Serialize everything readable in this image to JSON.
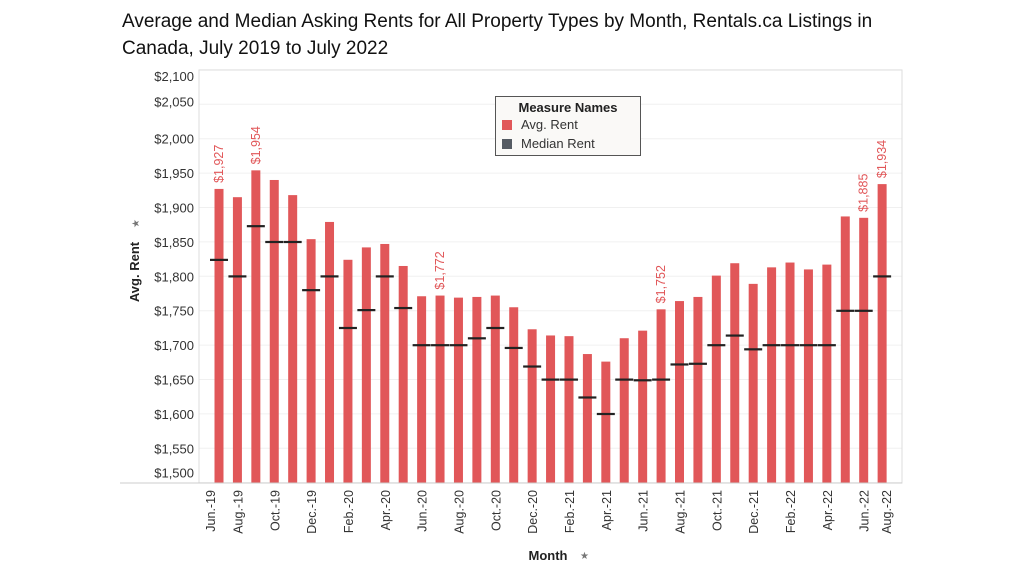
{
  "title": "Average and Median Asking Rents for All Property Types by Month, Rentals.ca Listings in Canada, July 2019 to July 2022",
  "chart_data": {
    "type": "bar",
    "title": "Average and Median Asking Rents for All Property Types by Month, Rentals.ca Listings in Canada, July 2019 to July 2022",
    "xlabel": "Month",
    "ylabel": "Avg. Rent",
    "ylim": [
      1500,
      2100
    ],
    "yticks": [
      1500,
      1550,
      1600,
      1650,
      1700,
      1750,
      1800,
      1850,
      1900,
      1950,
      2000,
      2050,
      2100
    ],
    "ytick_labels": [
      "$1,500",
      "$1,550",
      "$1,600",
      "$1,650",
      "$1,700",
      "$1,750",
      "$1,800",
      "$1,850",
      "$1,900",
      "$1,950",
      "$2,000",
      "$2,050",
      "$2,100"
    ],
    "grid": true,
    "legend_title": "Measure Names",
    "legend_position": "top-center",
    "x_tick_labels": [
      "Jun.-19",
      "Aug.-19",
      "Oct.-19",
      "Dec.-19",
      "Feb.-20",
      "Apr.-20",
      "Jun.-20",
      "Aug.-20",
      "Oct.-20",
      "Dec.-20",
      "Feb.-21",
      "Apr.-21",
      "Jun.-21",
      "Aug.-21",
      "Oct.-21",
      "Dec.-21",
      "Feb.-22",
      "Apr.-22",
      "Jun.-22",
      "Aug.-22"
    ],
    "categories": [
      "2019-07",
      "2019-08",
      "2019-09",
      "2019-10",
      "2019-11",
      "2019-12",
      "2020-01",
      "2020-02",
      "2020-03",
      "2020-04",
      "2020-05",
      "2020-06",
      "2020-07",
      "2020-08",
      "2020-09",
      "2020-10",
      "2020-11",
      "2020-12",
      "2021-01",
      "2021-02",
      "2021-03",
      "2021-04",
      "2021-05",
      "2021-06",
      "2021-07",
      "2021-08",
      "2021-09",
      "2021-10",
      "2021-11",
      "2021-12",
      "2022-01",
      "2022-02",
      "2022-03",
      "2022-04",
      "2022-05",
      "2022-06",
      "2022-07"
    ],
    "series": [
      {
        "name": "Avg. Rent",
        "color": "#e15759",
        "mark": "bar",
        "values": [
          1927,
          1915,
          1954,
          1940,
          1918,
          1854,
          1879,
          1824,
          1842,
          1847,
          1815,
          1771,
          1772,
          1769,
          1770,
          1772,
          1755,
          1723,
          1714,
          1713,
          1687,
          1676,
          1710,
          1721,
          1752,
          1764,
          1770,
          1801,
          1819,
          1789,
          1813,
          1820,
          1810,
          1817,
          1887,
          1885,
          1934
        ]
      },
      {
        "name": "Median Rent",
        "color": "#555b63",
        "mark": "tick",
        "values": [
          1824,
          1800,
          1873,
          1850,
          1850,
          1780,
          1800,
          1725,
          1751,
          1800,
          1754,
          1700,
          1700,
          1700,
          1710,
          1725,
          1696,
          1669,
          1650,
          1650,
          1624,
          1600,
          1650,
          1649,
          1650,
          1672,
          1673,
          1700,
          1714,
          1694,
          1700,
          1700,
          1700,
          1700,
          1750,
          1750,
          1800
        ]
      }
    ],
    "data_labels": [
      {
        "index": 0,
        "text": "$1,927"
      },
      {
        "index": 2,
        "text": "$1,954"
      },
      {
        "index": 12,
        "text": "$1,772"
      },
      {
        "index": 24,
        "text": "$1,752"
      },
      {
        "index": 35,
        "text": "$1,885"
      },
      {
        "index": 36,
        "text": "$1,934"
      }
    ]
  }
}
